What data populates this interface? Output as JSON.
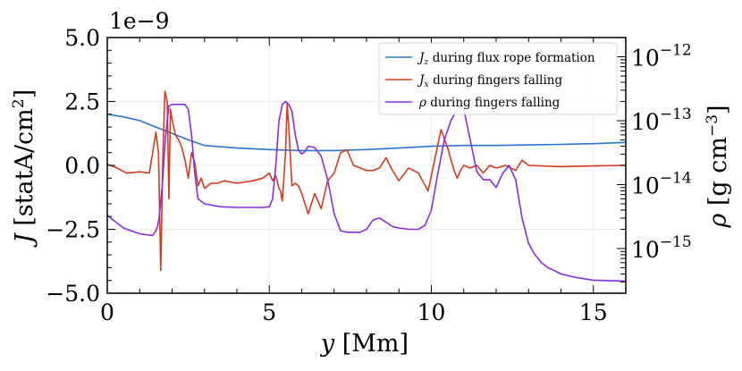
{
  "chart_data": {
    "type": "line",
    "xlabel": "y [Mm]",
    "ylabel_left": "J [statA/cm²]",
    "ylabel_right": "ρ [g cm⁻³]",
    "left_axis_multiplier": "1e−9",
    "xlim": [
      0,
      16
    ],
    "ylim_left": [
      -5.0,
      5.0
    ],
    "ylim_right": [
      2e-16,
      2e-12
    ],
    "right_scale": "log",
    "grid": true,
    "legend_position": "top-right",
    "x_ticks": [
      {
        "value": 0,
        "label": "0"
      },
      {
        "value": 5,
        "label": "5"
      },
      {
        "value": 10,
        "label": "10"
      },
      {
        "value": 15,
        "label": "15"
      }
    ],
    "y_ticks_left": [
      {
        "value": 5.0,
        "label": "5.0"
      },
      {
        "value": 2.5,
        "label": "2.5"
      },
      {
        "value": 0.0,
        "label": "0.0"
      },
      {
        "value": -2.5,
        "label": "−2.5"
      },
      {
        "value": -5.0,
        "label": "−5.0"
      }
    ],
    "y_ticks_right": [
      {
        "value": 1e-12,
        "base": "10",
        "exp": "−12"
      },
      {
        "value": 1e-13,
        "base": "10",
        "exp": "−13"
      },
      {
        "value": 1e-14,
        "base": "10",
        "exp": "−14"
      },
      {
        "value": 1e-15,
        "base": "10",
        "exp": "−15"
      }
    ],
    "series": [
      {
        "name": "J_z during flux rope formation",
        "legend_main": "J",
        "legend_sub": "z",
        "legend_rest": " during flux rope formation",
        "axis": "left",
        "color": "#2a74d4",
        "x": [
          0,
          0.5,
          1.0,
          1.5,
          2.0,
          2.5,
          3.0,
          4.0,
          5.0,
          6.0,
          7.0,
          8.0,
          9.0,
          10.0,
          11.0,
          12.0,
          13.0,
          14.0,
          15.0,
          16.0
        ],
        "y": [
          2.0,
          1.9,
          1.75,
          1.5,
          1.25,
          1.0,
          0.78,
          0.68,
          0.62,
          0.58,
          0.58,
          0.62,
          0.68,
          0.75,
          0.78,
          0.78,
          0.8,
          0.82,
          0.85,
          0.9
        ]
      },
      {
        "name": "J_x during fingers falling",
        "legend_main": "J",
        "legend_sub": "x",
        "legend_rest": " during fingers falling",
        "axis": "left",
        "color": "#d63a1e",
        "x": [
          0,
          0.3,
          0.6,
          1.0,
          1.3,
          1.5,
          1.58,
          1.65,
          1.72,
          1.78,
          1.85,
          1.9,
          1.95,
          2.0,
          2.05,
          2.1,
          2.2,
          2.3,
          2.4,
          2.5,
          2.6,
          2.7,
          2.8,
          2.9,
          3.0,
          3.2,
          3.4,
          3.6,
          4.0,
          4.5,
          4.8,
          5.0,
          5.1,
          5.2,
          5.3,
          5.35,
          5.4,
          5.5,
          5.55,
          5.6,
          5.7,
          5.8,
          5.9,
          6.0,
          6.2,
          6.4,
          6.6,
          6.8,
          7.0,
          7.2,
          7.4,
          7.6,
          7.8,
          8.0,
          8.2,
          8.4,
          8.6,
          8.8,
          9.0,
          9.3,
          9.6,
          9.9,
          10.1,
          10.3,
          10.5,
          10.7,
          10.8,
          10.9,
          11.0,
          11.2,
          11.4,
          11.6,
          11.8,
          12.0,
          12.3,
          12.6,
          12.8,
          13.0,
          14.0,
          15.0,
          16.0
        ],
        "y": [
          0.05,
          -0.1,
          -0.3,
          -0.25,
          -0.3,
          1.3,
          0.5,
          -4.1,
          0.5,
          2.9,
          2.5,
          -1.3,
          2.2,
          1.8,
          1.5,
          1.2,
          1.0,
          0.7,
          0.2,
          -0.5,
          0.5,
          0.1,
          -0.8,
          -0.5,
          -0.9,
          -0.7,
          -0.7,
          -0.6,
          -0.7,
          -0.6,
          -0.5,
          -0.3,
          -0.6,
          -0.4,
          -0.9,
          -1.0,
          -1.4,
          0.5,
          2.4,
          1.5,
          -0.8,
          -0.7,
          -0.8,
          -1.1,
          -1.9,
          -1.1,
          -1.7,
          -0.6,
          -0.3,
          0.5,
          0.6,
          0.0,
          -0.1,
          -0.2,
          -0.2,
          -0.1,
          0.3,
          -0.2,
          -0.6,
          -0.1,
          -0.3,
          -1.0,
          0.2,
          1.4,
          0.7,
          -0.2,
          -0.5,
          -0.2,
          0.0,
          -0.1,
          0.0,
          -0.3,
          0.0,
          -0.1,
          0.0,
          -0.2,
          0.2,
          0.0,
          -0.05,
          -0.02,
          0.0
        ]
      },
      {
        "name": "ρ during fingers falling",
        "legend_main": "ρ",
        "legend_sub": "",
        "legend_rest": " during fingers falling",
        "axis": "right",
        "color": "#8a2be2",
        "x": [
          0,
          0.5,
          1.0,
          1.4,
          1.5,
          1.55,
          1.6,
          1.7,
          1.8,
          1.9,
          2.0,
          2.2,
          2.4,
          2.5,
          2.6,
          2.7,
          2.8,
          3.0,
          3.5,
          4.0,
          4.5,
          4.8,
          5.0,
          5.1,
          5.2,
          5.3,
          5.4,
          5.5,
          5.6,
          5.7,
          5.8,
          5.9,
          6.0,
          6.1,
          6.2,
          6.4,
          6.6,
          6.8,
          7.0,
          7.2,
          7.4,
          7.6,
          7.8,
          8.0,
          8.2,
          8.4,
          8.6,
          8.8,
          9.0,
          9.3,
          9.6,
          9.8,
          10.0,
          10.2,
          10.4,
          10.6,
          10.8,
          10.9,
          11.0,
          11.2,
          11.4,
          11.6,
          11.8,
          12.0,
          12.2,
          12.4,
          12.6,
          12.8,
          13.0,
          13.2,
          13.4,
          13.6,
          13.8,
          14.0,
          14.5,
          15.0,
          16.0
        ],
        "y": [
          3.3e-15,
          2.1e-15,
          1.7e-15,
          1.6e-15,
          1.9e-15,
          2.2e-15,
          3e-15,
          1e-14,
          6e-14,
          1.7e-13,
          1.8e-13,
          1.8e-13,
          1.8e-13,
          1.5e-13,
          6e-14,
          1.5e-14,
          6e-15,
          5e-15,
          4.5e-15,
          4.4e-15,
          4.4e-15,
          4.4e-15,
          4.5e-15,
          6e-15,
          2e-14,
          1e-13,
          1.8e-13,
          2e-13,
          1.8e-13,
          1.4e-13,
          6e-14,
          3.5e-14,
          3e-14,
          3.3e-14,
          4e-14,
          3.8e-14,
          2.8e-14,
          1.2e-14,
          3.5e-15,
          1.9e-15,
          1.8e-15,
          1.8e-15,
          1.8e-15,
          2e-15,
          2.8e-15,
          3e-15,
          2.6e-15,
          2.2e-15,
          2.1e-15,
          2e-15,
          2e-15,
          2.3e-15,
          4e-15,
          1.5e-14,
          5e-14,
          1e-13,
          1.5e-13,
          1.6e-13,
          1.5e-13,
          5e-14,
          1.6e-14,
          1.2e-14,
          1.2e-14,
          9e-15,
          1.5e-14,
          2e-14,
          1.2e-14,
          3e-15,
          1.2e-15,
          8e-16,
          6e-16,
          5e-16,
          4.5e-16,
          4e-16,
          3.5e-16,
          3.2e-16,
          3.1e-16
        ]
      }
    ]
  }
}
